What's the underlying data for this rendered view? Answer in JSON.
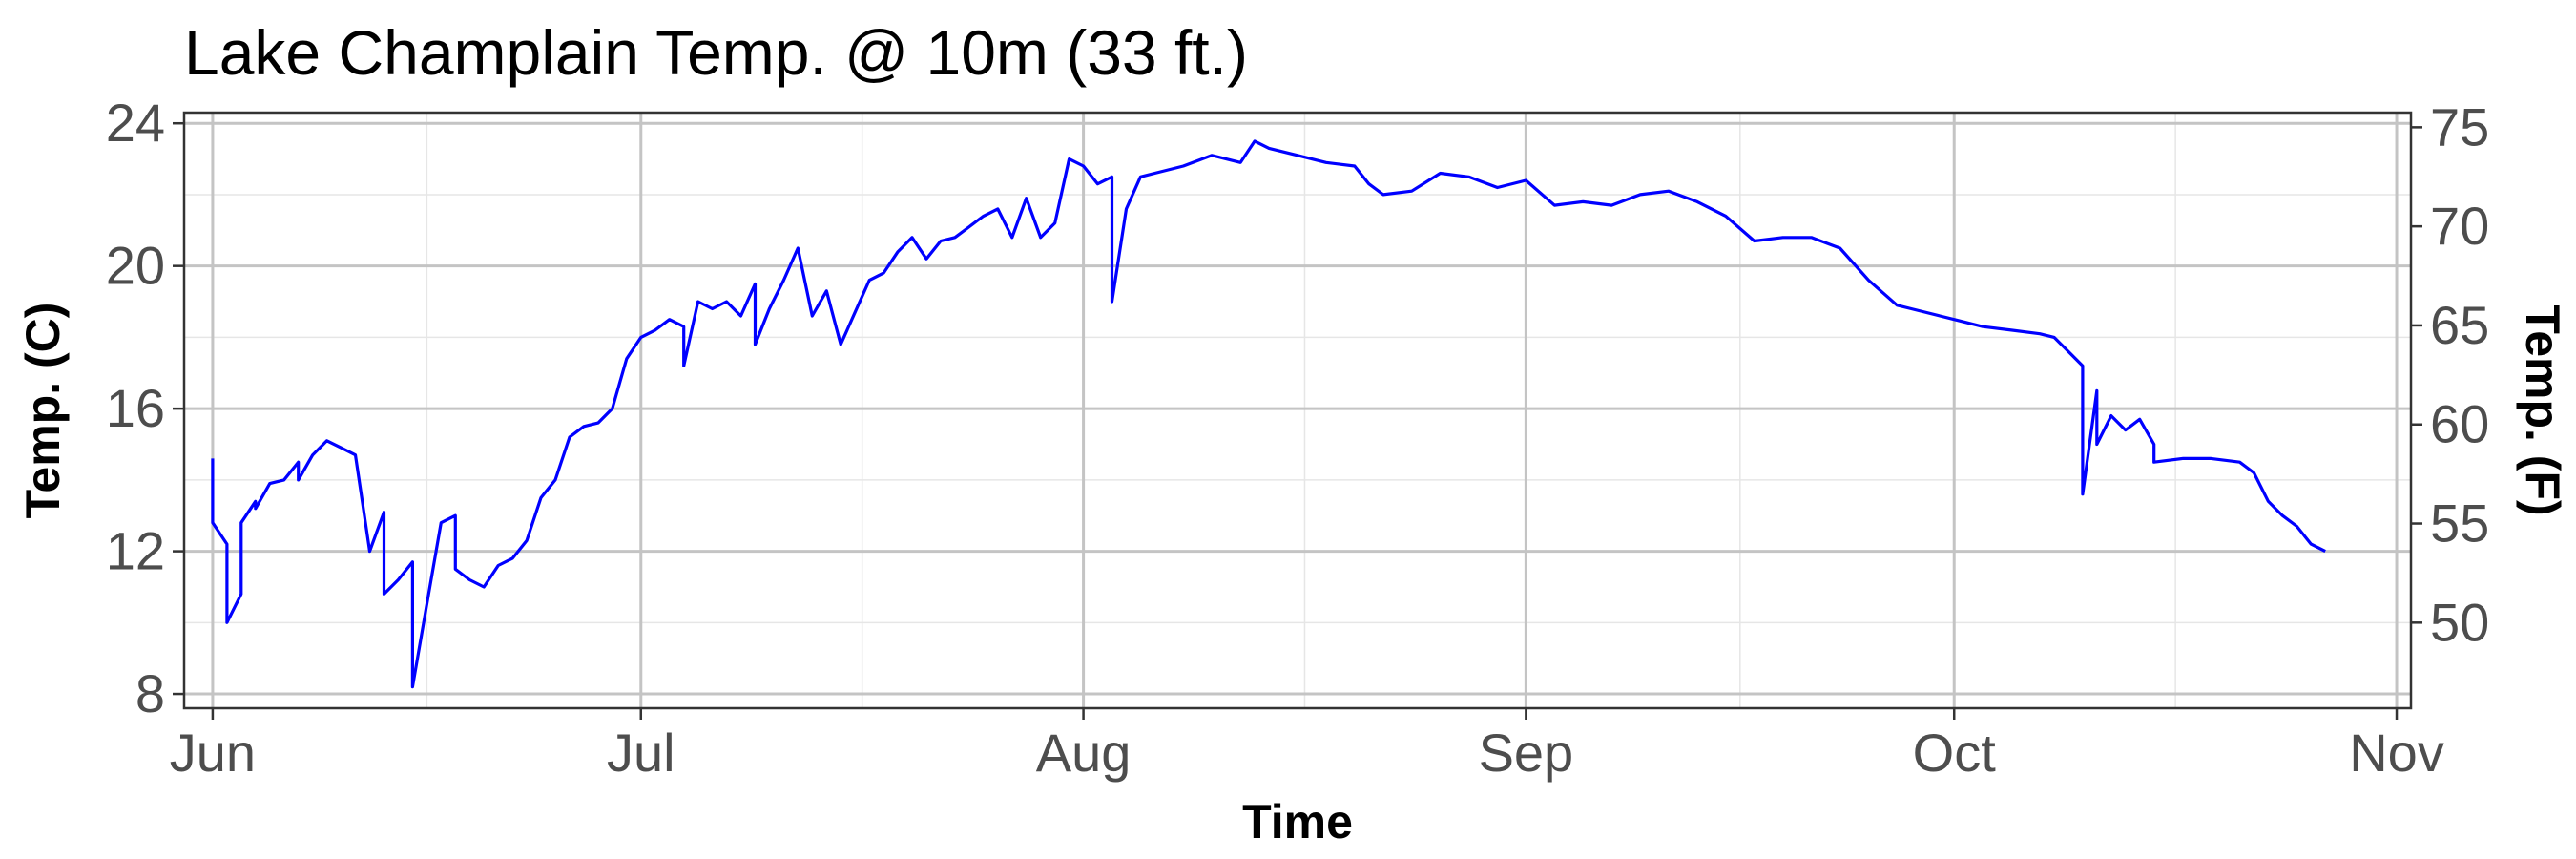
{
  "chart_data": {
    "type": "line",
    "title": "Lake Champlain Temp. @ 10m (33 ft.)",
    "xlabel": "Time",
    "ylabel": "Temp. (C)",
    "y2label": "Temp. (F)",
    "line_color": "#0000ff",
    "grid": true,
    "legend": "none",
    "xlim": [
      "2021-05-30",
      "2021-11-02"
    ],
    "ylim": [
      7.6,
      24.3
    ],
    "x_ticks": [
      {
        "value": "2021-06-01",
        "label": "Jun"
      },
      {
        "value": "2021-07-01",
        "label": "Jul"
      },
      {
        "value": "2021-08-01",
        "label": "Aug"
      },
      {
        "value": "2021-09-01",
        "label": "Sep"
      },
      {
        "value": "2021-10-01",
        "label": "Oct"
      },
      {
        "value": "2021-11-01",
        "label": "Nov"
      }
    ],
    "y_ticks": [
      8,
      12,
      16,
      20,
      24
    ],
    "y2_ticks": [
      50,
      55,
      60,
      65,
      70,
      75
    ],
    "series": [
      {
        "x": [
          "2021-06-01",
          "2021-06-01",
          "2021-06-02",
          "2021-06-02",
          "2021-06-03",
          "2021-06-03",
          "2021-06-04",
          "2021-06-04",
          "2021-06-05",
          "2021-06-06",
          "2021-06-07",
          "2021-06-07",
          "2021-06-08",
          "2021-06-09",
          "2021-06-10",
          "2021-06-11",
          "2021-06-12",
          "2021-06-13",
          "2021-06-13",
          "2021-06-14",
          "2021-06-15",
          "2021-06-15",
          "2021-06-16",
          "2021-06-17",
          "2021-06-18",
          "2021-06-18",
          "2021-06-19",
          "2021-06-20",
          "2021-06-21",
          "2021-06-22",
          "2021-06-23",
          "2021-06-24",
          "2021-06-25",
          "2021-06-26",
          "2021-06-27",
          "2021-06-28",
          "2021-06-29",
          "2021-06-30",
          "2021-07-01",
          "2021-07-02",
          "2021-07-03",
          "2021-07-04",
          "2021-07-04",
          "2021-07-05",
          "2021-07-06",
          "2021-07-07",
          "2021-07-08",
          "2021-07-09",
          "2021-07-09",
          "2021-07-10",
          "2021-07-11",
          "2021-07-12",
          "2021-07-13",
          "2021-07-14",
          "2021-07-15",
          "2021-07-16",
          "2021-07-17",
          "2021-07-18",
          "2021-07-19",
          "2021-07-20",
          "2021-07-21",
          "2021-07-22",
          "2021-07-23",
          "2021-07-24",
          "2021-07-25",
          "2021-07-26",
          "2021-07-27",
          "2021-07-28",
          "2021-07-29",
          "2021-07-30",
          "2021-07-31",
          "2021-08-01",
          "2021-08-02",
          "2021-08-03",
          "2021-08-03",
          "2021-08-04",
          "2021-08-05",
          "2021-08-06",
          "2021-08-08",
          "2021-08-10",
          "2021-08-12",
          "2021-08-13",
          "2021-08-14",
          "2021-08-16",
          "2021-08-18",
          "2021-08-20",
          "2021-08-21",
          "2021-08-22",
          "2021-08-24",
          "2021-08-26",
          "2021-08-28",
          "2021-08-30",
          "2021-09-01",
          "2021-09-03",
          "2021-09-05",
          "2021-09-07",
          "2021-09-09",
          "2021-09-11",
          "2021-09-13",
          "2021-09-15",
          "2021-09-17",
          "2021-09-19",
          "2021-09-21",
          "2021-09-23",
          "2021-09-25",
          "2021-09-27",
          "2021-09-28",
          "2021-09-30",
          "2021-10-01",
          "2021-10-03",
          "2021-10-05",
          "2021-10-07",
          "2021-10-08",
          "2021-10-09",
          "2021-10-10",
          "2021-10-10",
          "2021-10-11",
          "2021-10-11",
          "2021-10-12",
          "2021-10-13",
          "2021-10-14",
          "2021-10-15",
          "2021-10-15",
          "2021-10-17",
          "2021-10-19",
          "2021-10-21",
          "2021-10-22",
          "2021-10-23",
          "2021-10-24",
          "2021-10-25",
          "2021-10-26",
          "2021-10-27"
        ],
        "y": [
          14.6,
          12.8,
          12.2,
          10.0,
          10.8,
          12.8,
          13.4,
          13.2,
          13.9,
          14.0,
          14.5,
          14.0,
          14.7,
          15.1,
          14.9,
          14.7,
          12.0,
          13.1,
          10.8,
          11.2,
          11.7,
          8.2,
          10.5,
          12.8,
          13.0,
          11.5,
          11.2,
          11.0,
          11.6,
          11.8,
          12.3,
          13.5,
          14.0,
          15.2,
          15.5,
          15.6,
          16.0,
          17.4,
          18.0,
          18.2,
          18.5,
          18.3,
          17.2,
          19.0,
          18.8,
          19.0,
          18.6,
          19.5,
          17.8,
          18.8,
          19.6,
          20.5,
          18.6,
          19.3,
          17.8,
          18.7,
          19.6,
          19.8,
          20.4,
          20.8,
          20.2,
          20.7,
          20.8,
          21.1,
          21.4,
          21.6,
          20.8,
          21.9,
          20.8,
          21.2,
          23.0,
          22.8,
          22.3,
          22.5,
          19.0,
          21.6,
          22.5,
          22.6,
          22.8,
          23.1,
          22.9,
          23.5,
          23.3,
          23.1,
          22.9,
          22.8,
          22.3,
          22.0,
          22.1,
          22.6,
          22.5,
          22.2,
          22.4,
          21.7,
          21.8,
          21.7,
          22.0,
          22.1,
          21.8,
          21.4,
          20.7,
          20.8,
          20.8,
          20.5,
          19.6,
          18.9,
          18.8,
          18.6,
          18.5,
          18.3,
          18.2,
          18.1,
          18.0,
          17.6,
          17.2,
          13.6,
          16.5,
          15.0,
          15.8,
          15.4,
          15.7,
          15.0,
          14.5,
          14.6,
          14.6,
          14.5,
          14.2,
          13.4,
          13.0,
          12.7,
          12.2,
          12.0
        ]
      }
    ]
  }
}
